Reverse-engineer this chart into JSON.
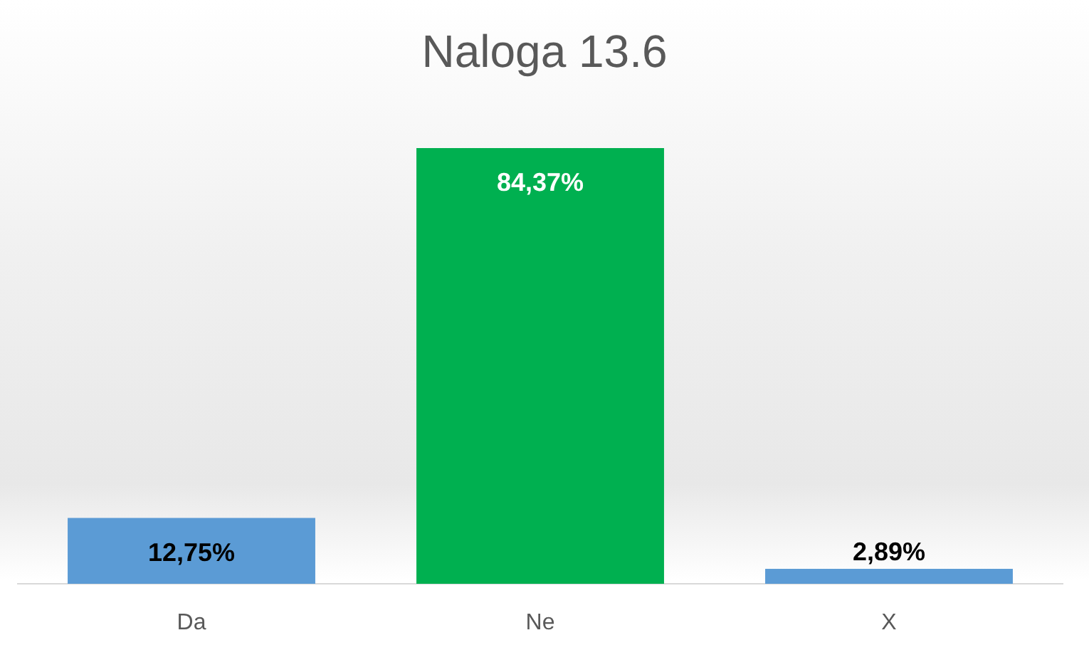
{
  "chart_data": {
    "type": "bar",
    "title": "Naloga 13.6",
    "categories": [
      "Da",
      "Ne",
      "X"
    ],
    "values": [
      12.75,
      84.37,
      2.89
    ],
    "colors": [
      "#5b9bd5",
      "#00b050",
      "#5b9bd5"
    ],
    "value_labels": [
      "12,75%",
      "84,37%",
      "2,89%"
    ]
  }
}
